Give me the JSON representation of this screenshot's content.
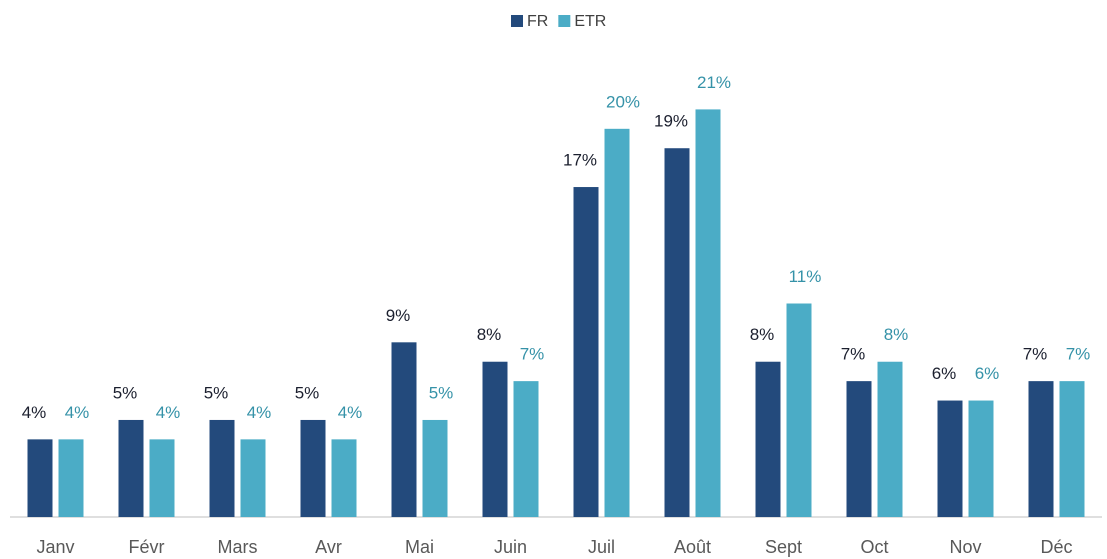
{
  "chart_data": {
    "type": "bar",
    "categories": [
      "Janv",
      "Févr",
      "Mars",
      "Avr",
      "Mai",
      "Juin",
      "Juil",
      "Août",
      "Sept",
      "Oct",
      "Nov",
      "Déc"
    ],
    "series": [
      {
        "name": "FR",
        "color": "#234a7c",
        "label_color": "#1b1f2e",
        "values": [
          4,
          5,
          5,
          5,
          9,
          8,
          17,
          19,
          8,
          7,
          6,
          7
        ],
        "value_labels": [
          "4%",
          "5%",
          "5%",
          "5%",
          "9%",
          "8%",
          "17%",
          "19%",
          "8%",
          "7%",
          "6%",
          "7%"
        ]
      },
      {
        "name": "ETR",
        "color": "#4bacc6",
        "label_color": "#3592a8",
        "values": [
          4,
          4,
          4,
          4,
          5,
          7,
          20,
          21,
          11,
          8,
          6,
          7
        ],
        "value_labels": [
          "4%",
          "4%",
          "4%",
          "4%",
          "5%",
          "7%",
          "20%",
          "21%",
          "11%",
          "8%",
          "6%",
          "7%"
        ]
      }
    ],
    "ylim": [
      0,
      22
    ],
    "legend": "top"
  }
}
